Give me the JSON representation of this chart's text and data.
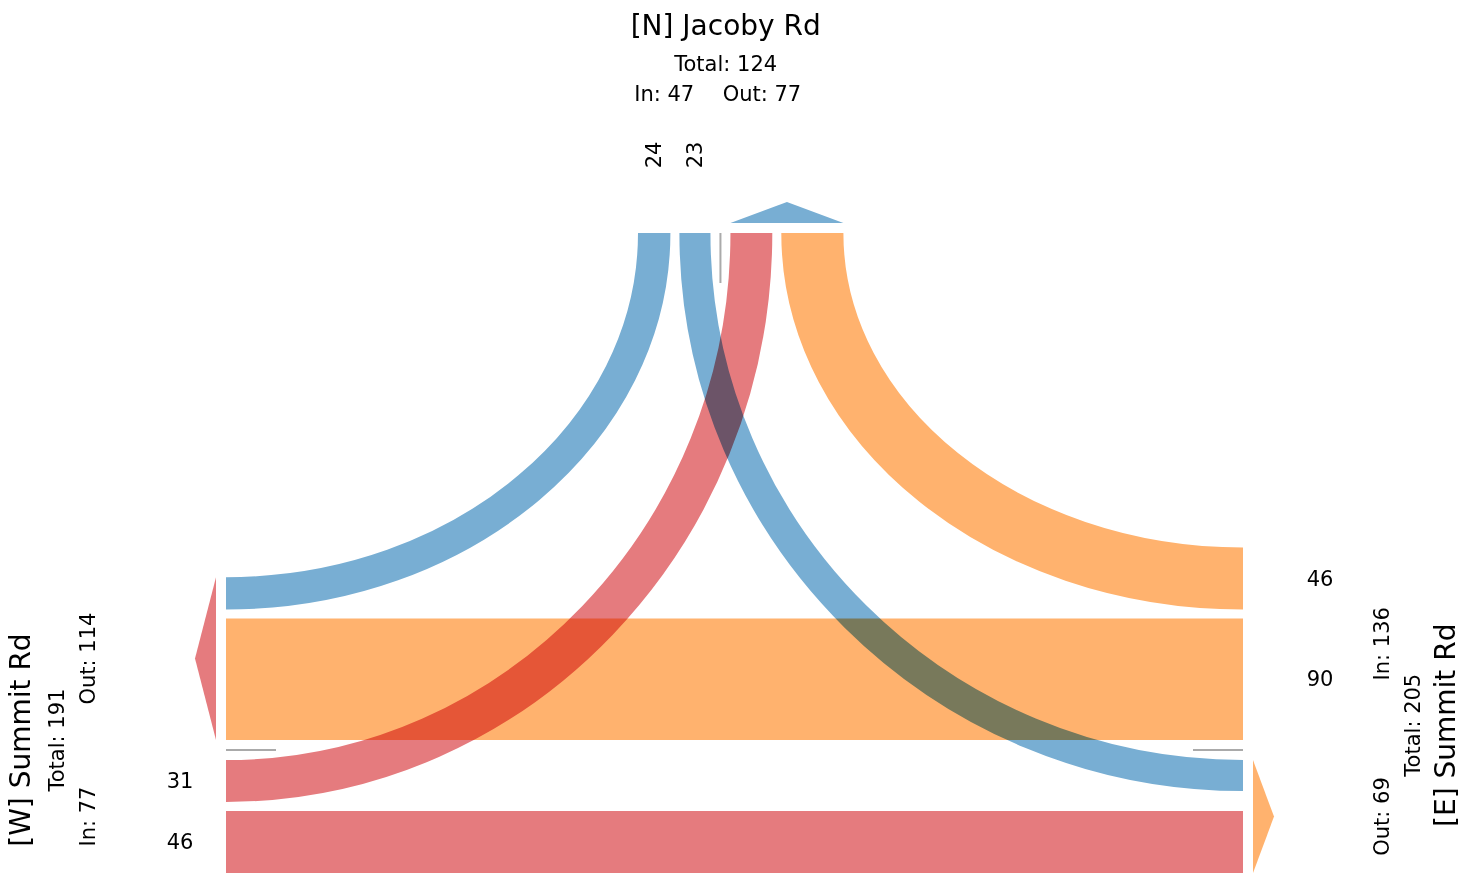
{
  "chart_data": {
    "type": "other",
    "categories": [
      "[N] Jacoby Rd",
      "[W] Summit Rd",
      "[E] Summit Rd"
    ],
    "series": [
      {
        "colors": [
          null,
          "#e57b7e",
          "#ffb26e"
        ],
        "values": [
          null,
          31,
          46
        ]
      },
      {
        "colors": [
          "#78aed3",
          null,
          "#ffb26e"
        ],
        "values": [
          24,
          null,
          90
        ]
      },
      {
        "colors": [
          "#78aed3",
          "#e57b7e",
          null
        ],
        "values": [
          23,
          46,
          null
        ]
      }
    ],
    "data_labels": true,
    "annotations": [
      "Total: 124",
      "In: 47",
      "Out: 77",
      "Total: 191",
      "In: 77",
      "Out: 114",
      "Total: 205",
      "In: 136",
      "Out: 69"
    ]
  }
}
